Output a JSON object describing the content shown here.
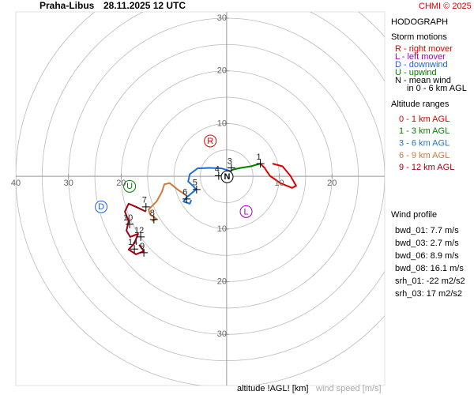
{
  "chart_data": {
    "type": "hodograph",
    "station": "Praha-Libus",
    "title": "28.11.2025 12 UTC",
    "credit": "CHMI © 2025",
    "panel_title": "HODOGRAPH",
    "x_label": "altitude !AGL! [km]",
    "value_label": "wind speed [m/s]",
    "xlim": [
      -40,
      30
    ],
    "ylim": [
      -39.7,
      31.2
    ],
    "rings": [
      5,
      10,
      15,
      20,
      25,
      30,
      35,
      40
    ],
    "xticks": [
      {
        "value": -40,
        "label": "40"
      },
      {
        "value": -30,
        "label": "30"
      },
      {
        "value": -20,
        "label": "20"
      },
      10,
      20
    ],
    "yticks": [
      10,
      20,
      30,
      {
        "value": -10,
        "label": "10"
      },
      {
        "value": -20,
        "label": "20"
      },
      {
        "value": -30,
        "label": "30"
      }
    ],
    "legend_title": "Altitude ranges",
    "series": [
      {
        "name": "0 - 1 km AGL",
        "color": "#e00000",
        "x": [
          8.7,
          10.6,
          12.1,
          13.2,
          12.4,
          10.2,
          8.2,
          7.2,
          6.4
        ],
        "values": [
          2.4,
          1.9,
          0.1,
          -1.8,
          -2.2,
          -1.3,
          0.1,
          1.6,
          2.4
        ]
      },
      {
        "name": "1 - 3 km AGL",
        "color": "#008000",
        "x": [
          6.4,
          4.6,
          2.7,
          1.3,
          0.7
        ],
        "values": [
          2.4,
          1.9,
          1.6,
          1.3,
          1.0
        ]
      },
      {
        "name": "3 - 6 km AGL",
        "color": "#1f6fd6",
        "x": [
          0.7,
          -1.0,
          -3.3,
          -5.5,
          -7.0,
          -7.3,
          -6.3,
          -5.8,
          -7.6,
          -8.2,
          -7.0,
          -6.7
        ],
        "values": [
          1.0,
          1.5,
          1.6,
          1.5,
          0.4,
          -1.0,
          -1.9,
          -2.5,
          -4.0,
          -4.8,
          -5.2,
          -4.5
        ]
      },
      {
        "name": "6 - 9 km AGL",
        "color": "#d0783a",
        "x": [
          -7.6,
          -9.3,
          -10.8,
          -11.8,
          -12.3,
          -13.3,
          -14.8,
          -14.5,
          -13.3,
          -14.2
        ],
        "values": [
          -3.7,
          -2.5,
          -1.3,
          -1.5,
          -3.0,
          -4.8,
          -6.3,
          -7.3,
          -8.1,
          -8.5
        ]
      },
      {
        "name": "9 - 12 km AGL",
        "color": "#a00010",
        "x": [
          -15.3,
          -17.2,
          -18.6,
          -19.3,
          -18.6,
          -19.0,
          -18.3,
          -16.8,
          -17.5,
          -18.6,
          -17.2,
          -15.7,
          -16.6
        ],
        "values": [
          -6.7,
          -5.8,
          -5.2,
          -6.7,
          -8.5,
          -10.3,
          -11.5,
          -10.9,
          -12.7,
          -13.9,
          -14.8,
          -14.2,
          -13.0
        ]
      }
    ],
    "altitude_markers": [
      {
        "label": "1",
        "x": 6.4,
        "y": 2.4
      },
      {
        "label": "3",
        "x": 0.9,
        "y": 1.6
      },
      {
        "label": "4",
        "x": -1.5,
        "y": 0.1
      },
      {
        "label": "5",
        "x": -5.7,
        "y": -2.5
      },
      {
        "label": "6",
        "x": -7.6,
        "y": -4.3
      },
      {
        "label": "7",
        "x": -15.3,
        "y": -5.8
      },
      {
        "label": "8",
        "x": -13.8,
        "y": -8.2
      },
      {
        "label": "9",
        "x": -15.7,
        "y": -14.5
      },
      {
        "label": "10",
        "x": -18.4,
        "y": -9.1
      },
      {
        "label": "12",
        "x": -16.3,
        "y": -11.5
      },
      {
        "label": "14",
        "x": -17.5,
        "y": -13.8
      }
    ],
    "storm_motions_title": "Storm motions",
    "storm_motions": [
      {
        "label": "R",
        "legend": "R - right mover",
        "color": "#e00000",
        "x": -3.1,
        "y": 6.7
      },
      {
        "label": "L",
        "legend": "L - left mover",
        "color": "#a000c0",
        "x": 3.7,
        "y": -6.7
      },
      {
        "label": "D",
        "legend": "D - downwind",
        "color": "#1f5fe0",
        "x": -23.8,
        "y": -5.8
      },
      {
        "label": "U",
        "legend": "U - upwind",
        "color": "#008000",
        "x": -18.4,
        "y": -1.9
      },
      {
        "label": "N",
        "legend": "N - mean wind",
        "color": "#000000",
        "x": 0.1,
        "y": -0.1
      }
    ],
    "storm_motion_note": "in 0 - 6 km AGL",
    "profile_title": "Wind profile",
    "profile": [
      "bwd_01: 7.7 m/s",
      "bwd_03: 2.7 m/s",
      "bwd_06: 8.9 m/s",
      "bwd_08: 16.1 m/s",
      "srh_01: -22 m2/s2",
      "srh_03: 17 m2/s2"
    ]
  }
}
